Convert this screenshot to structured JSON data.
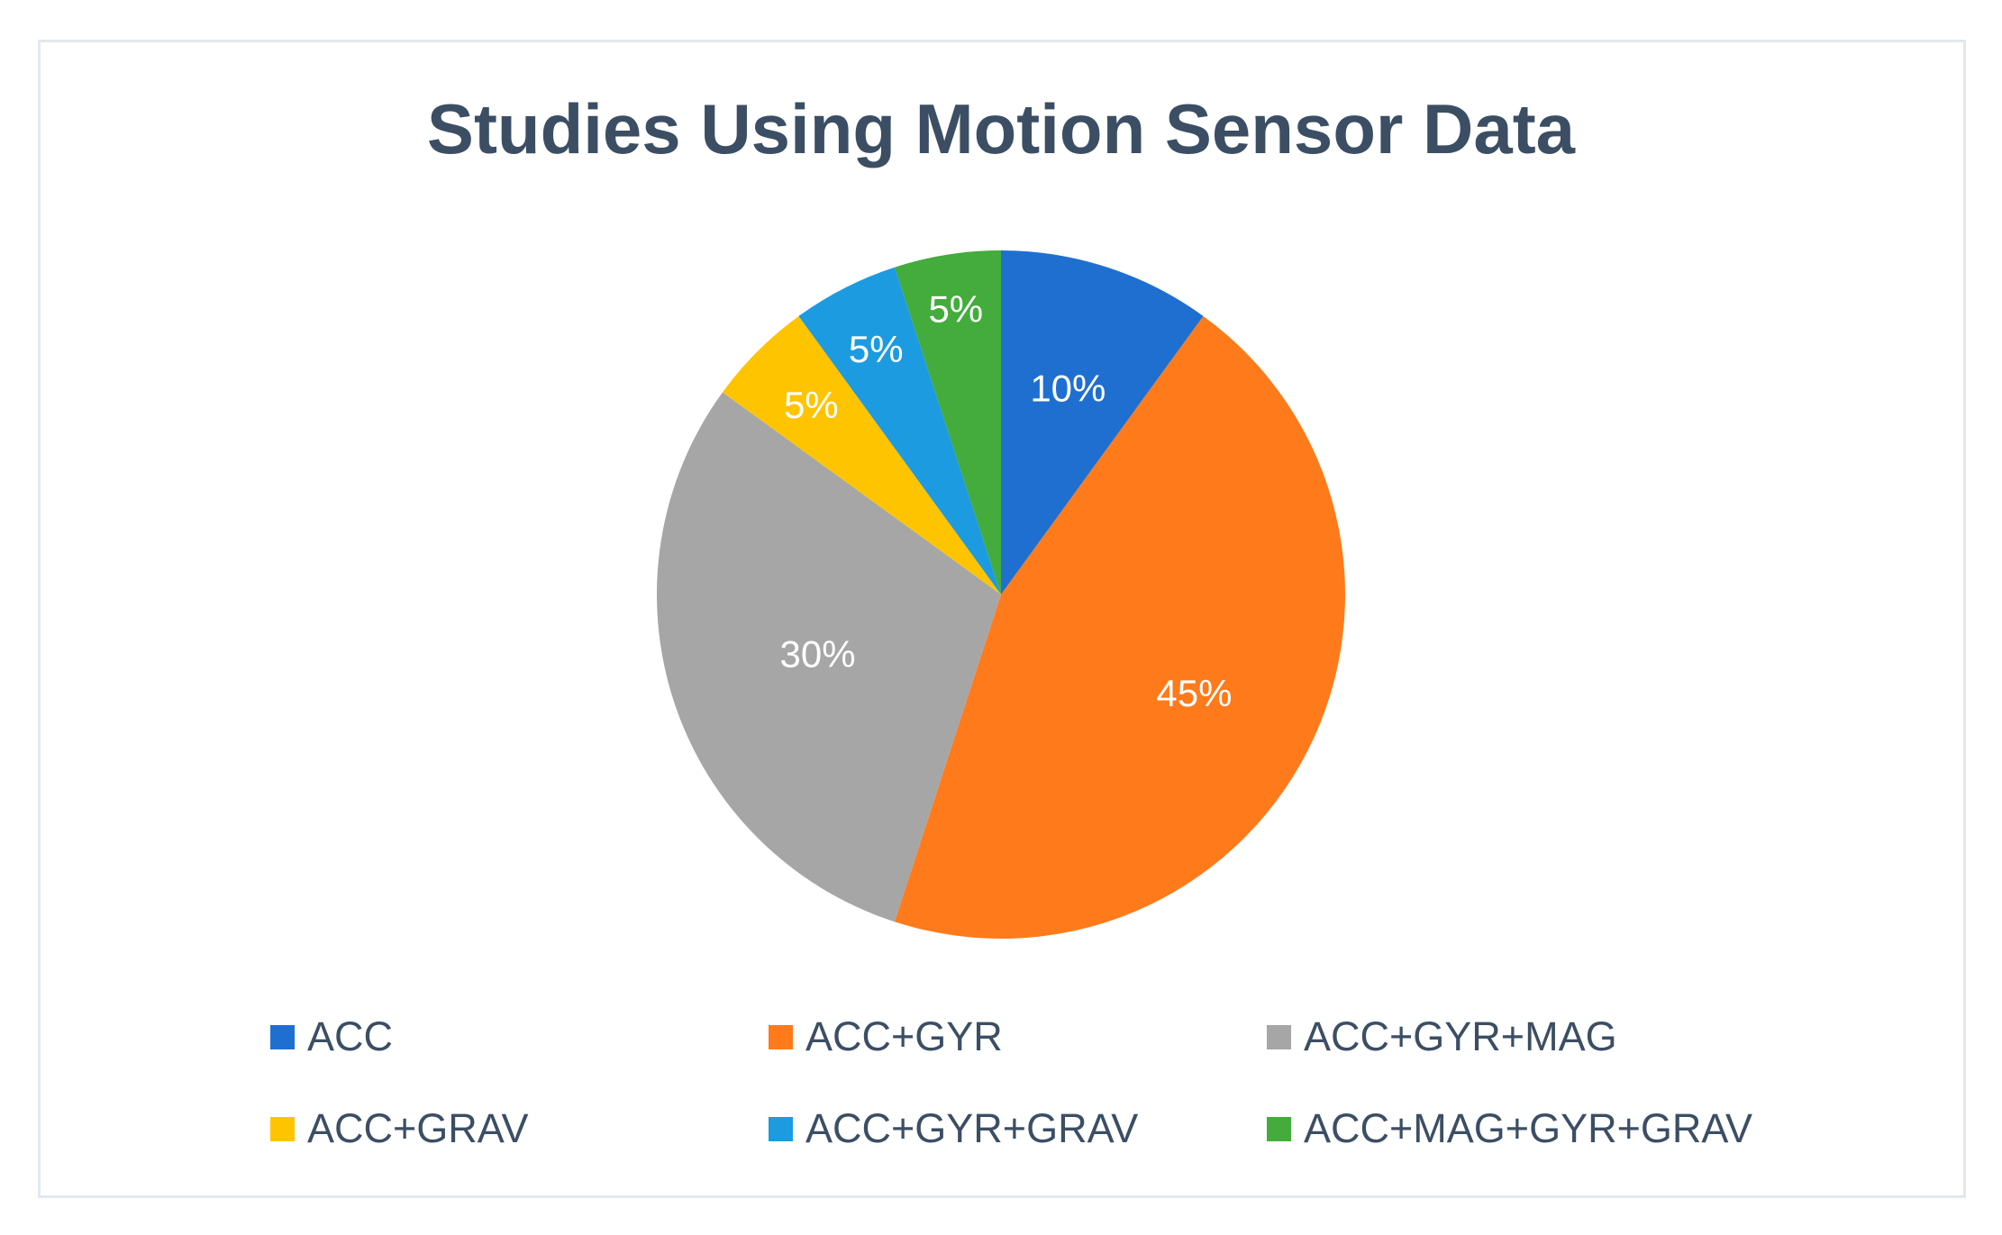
{
  "chart_data": {
    "type": "pie",
    "title": "Studies Using Motion Sensor Data",
    "legend_position": "bottom",
    "slices": [
      {
        "label": "ACC",
        "value": 10,
        "display": "10%",
        "color": "#1f6fd1"
      },
      {
        "label": "ACC+GYR",
        "value": 45,
        "display": "45%",
        "color": "#ff7a1a"
      },
      {
        "label": "ACC+GYR+MAG",
        "value": 30,
        "display": "30%",
        "color": "#a6a6a6"
      },
      {
        "label": "ACC+GRAV",
        "value": 5,
        "display": "5%",
        "color": "#ffc400"
      },
      {
        "label": "ACC+GYR+GRAV",
        "value": 5,
        "display": "5%",
        "color": "#1c9be0"
      },
      {
        "label": "ACC+MAG+GYR+GRAV",
        "value": 5,
        "display": "5%",
        "color": "#43ac3c"
      }
    ]
  }
}
